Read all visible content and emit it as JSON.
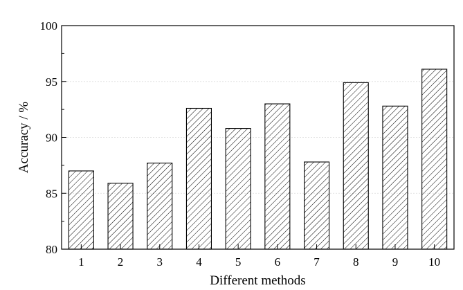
{
  "chart_data": {
    "type": "bar",
    "categories": [
      "1",
      "2",
      "3",
      "4",
      "5",
      "6",
      "7",
      "8",
      "9",
      "10"
    ],
    "values": [
      87.0,
      85.9,
      87.7,
      92.6,
      90.8,
      93.0,
      87.8,
      94.9,
      92.8,
      96.1
    ],
    "title": "",
    "xlabel": "Different methods",
    "ylabel": "Accuracy / %",
    "ylim": [
      80,
      100
    ],
    "yticks": [
      "80",
      "85",
      "90",
      "95",
      "100"
    ],
    "grid": true,
    "bar_fill": "hatched",
    "colors": {
      "bar_stroke": "#000000",
      "hatch": "#000000",
      "grid": "#d9d9d9",
      "axis": "#000000"
    }
  }
}
